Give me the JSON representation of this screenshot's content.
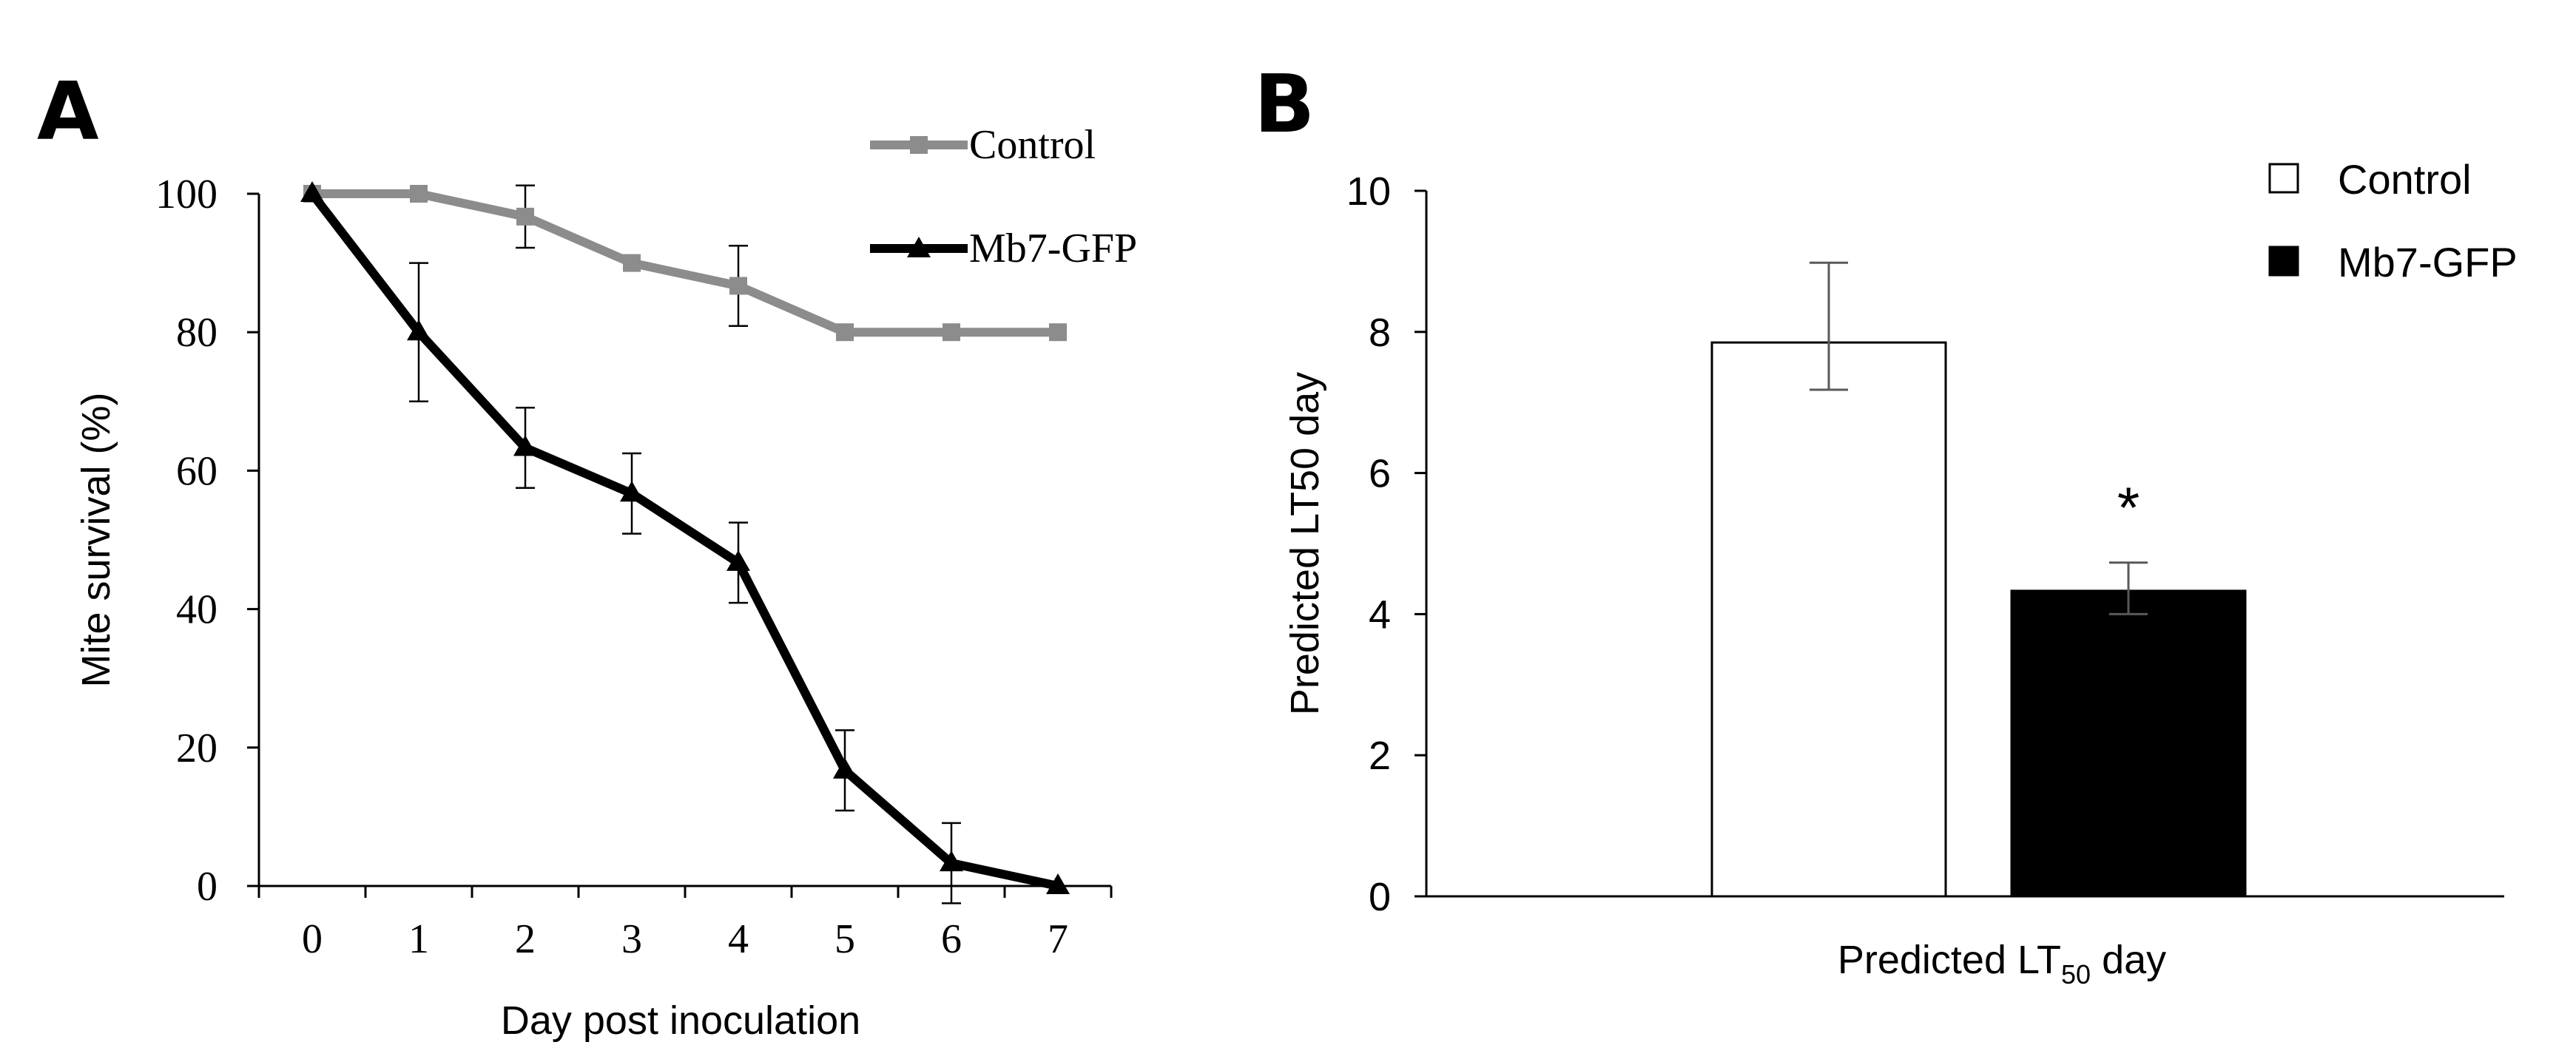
{
  "chart_data": [
    {
      "panel": "A",
      "type": "line",
      "xlabel": "Day post inoculation",
      "ylabel": "Mite survival (%)",
      "x": [
        0,
        1,
        2,
        3,
        4,
        5,
        6,
        7
      ],
      "xlim": [
        -0.5,
        7.5
      ],
      "ylim": [
        0,
        100
      ],
      "x_ticks": [
        "0",
        "1",
        "2",
        "3",
        "4",
        "5",
        "6",
        "7"
      ],
      "y_ticks": [
        "0",
        "20",
        "40",
        "60",
        "80",
        "100"
      ],
      "series": [
        {
          "name": "Control",
          "color": "#8c8c8c",
          "marker": "square",
          "values": [
            100,
            100,
            96.7,
            90,
            86.7,
            80,
            80,
            80
          ],
          "errors": [
            0,
            0,
            4.5,
            0,
            5.8,
            0,
            0,
            0
          ]
        },
        {
          "name": "Mb7-GFP",
          "color": "#000000",
          "marker": "triangle",
          "values": [
            100,
            80,
            63.3,
            56.7,
            46.7,
            16.7,
            3.3,
            0
          ],
          "errors": [
            0,
            10,
            5.8,
            5.8,
            5.8,
            5.8,
            5.8,
            0
          ]
        }
      ]
    },
    {
      "panel": "B",
      "type": "bar",
      "ylabel": "Predicted LT50 day",
      "xlabel_main": "Predicted LT",
      "xlabel_sub": "50",
      "xlabel_tail": " day",
      "ylim": [
        0,
        10
      ],
      "y_ticks": [
        "0",
        "2",
        "4",
        "6",
        "8",
        "10"
      ],
      "categories": [
        "Predicted LT50 day"
      ],
      "series": [
        {
          "name": "Control",
          "fill": "#ffffff",
          "values": [
            7.85
          ],
          "error_low": [
            7.18
          ],
          "error_high": [
            8.98
          ]
        },
        {
          "name": "Mb7-GFP",
          "fill": "#000000",
          "values": [
            4.33
          ],
          "error_low": [
            4.0
          ],
          "error_high": [
            4.73
          ]
        }
      ],
      "annotation": "*"
    }
  ],
  "panels": {
    "a_letter": "A",
    "b_letter": "B"
  }
}
